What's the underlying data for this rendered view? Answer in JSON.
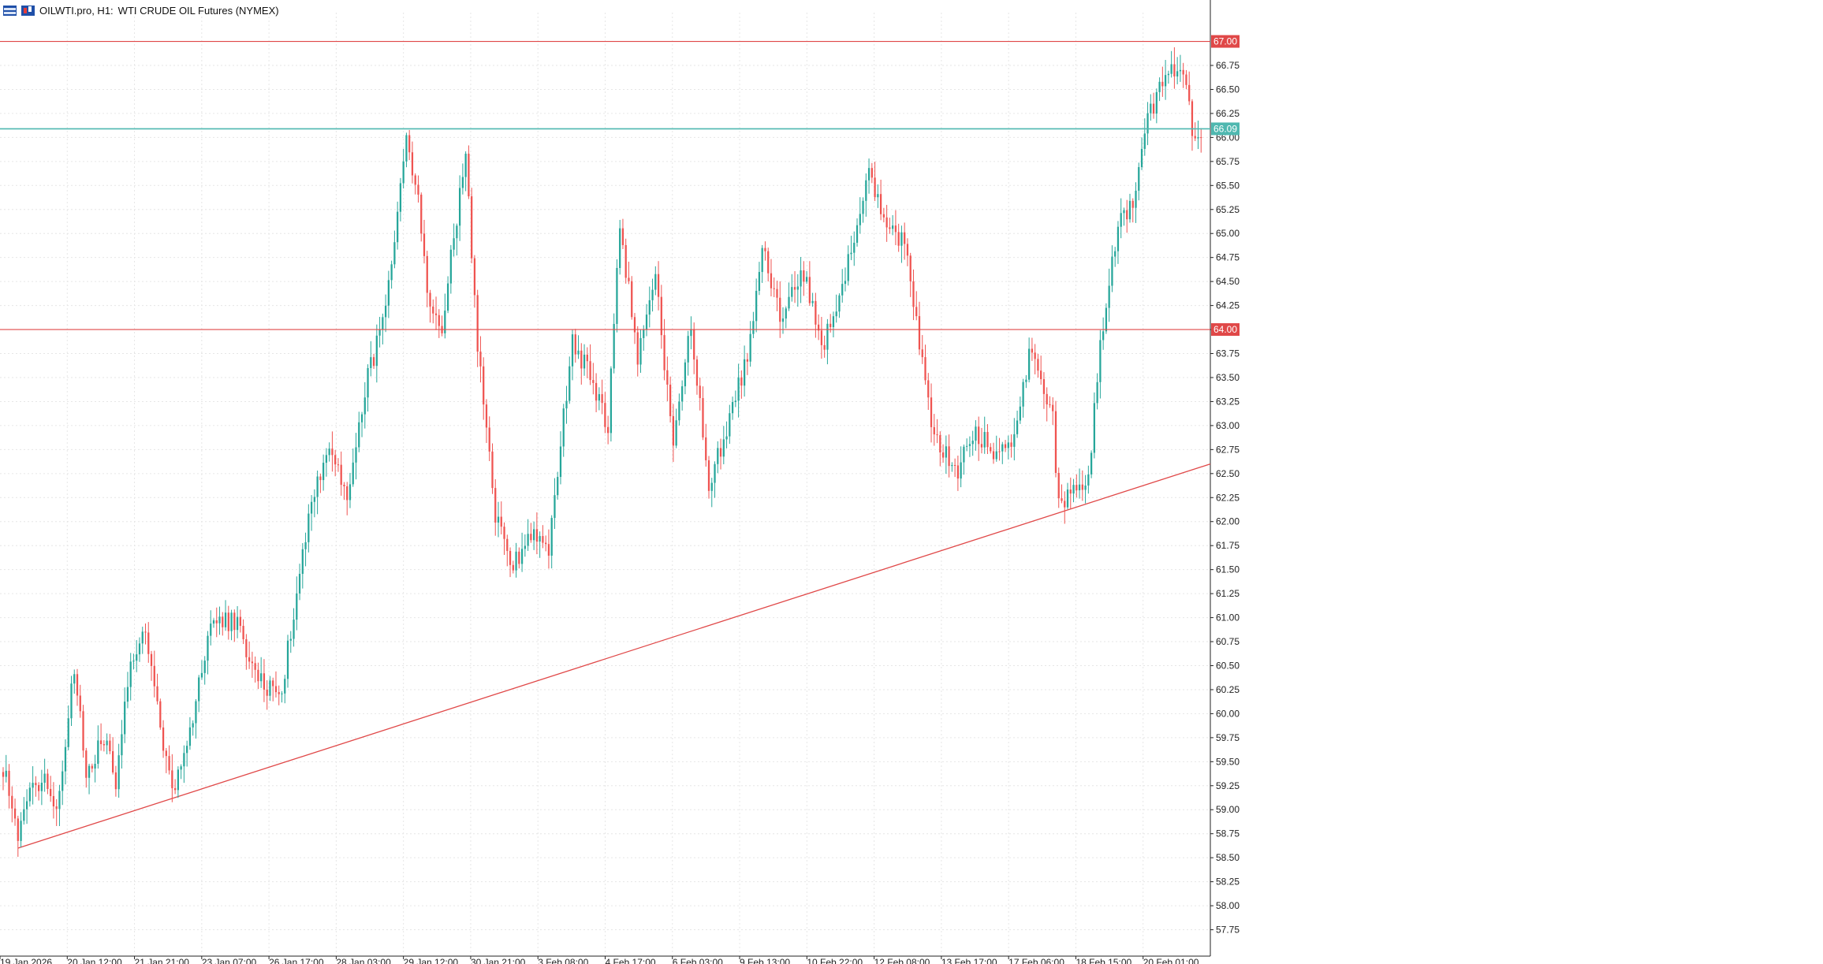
{
  "header": {
    "symbol": "OILWTI.pro, H1:",
    "description": "WTI CRUDE OIL Futures (NYMEX)",
    "icons": [
      "symbols-list-icon",
      "chart-window-icon"
    ]
  },
  "colors": {
    "bull": "#26a69a",
    "bear": "#ef5350",
    "level_line": "#e04848",
    "current_line": "#4fb8b0",
    "trendline": "#e04848",
    "grid": "#e6e6e6",
    "axis": "#222222"
  },
  "chart_data": {
    "type": "candlestick",
    "title": "OILWTI.pro, H1:  WTI CRUDE OIL Futures (NYMEX)",
    "xlabel": "",
    "ylabel": "",
    "ylim": [
      57.5,
      67.3
    ],
    "y_ticks": [
      57.75,
      58.0,
      58.25,
      58.5,
      58.75,
      59.0,
      59.25,
      59.5,
      59.75,
      60.0,
      60.25,
      60.5,
      60.75,
      61.0,
      61.25,
      61.5,
      61.75,
      62.0,
      62.25,
      62.5,
      62.75,
      63.0,
      63.25,
      63.5,
      63.75,
      64.0,
      64.25,
      64.5,
      64.75,
      65.0,
      65.25,
      65.5,
      65.75,
      66.0,
      66.25,
      66.5,
      66.75
    ],
    "x_labels": [
      "19 Jan 2026",
      "20 Jan 12:00",
      "21 Jan 21:00",
      "23 Jan 07:00",
      "26 Jan 17:00",
      "28 Jan 03:00",
      "29 Jan 12:00",
      "30 Jan 21:00",
      "3 Feb 08:00",
      "4 Feb 17:00",
      "6 Feb 03:00",
      "9 Feb 13:00",
      "10 Feb 22:00",
      "12 Feb 08:00",
      "13 Feb 17:00",
      "17 Feb 06:00",
      "18 Feb 15:00",
      "20 Feb 01:00"
    ],
    "grid": true,
    "horizontal_levels": [
      {
        "price": 67.0,
        "label": "67.00",
        "kind": "resistance"
      },
      {
        "price": 64.0,
        "label": "64.00",
        "kind": "support"
      },
      {
        "price": 66.09,
        "label": "66.09",
        "kind": "current_price"
      }
    ],
    "trendline": {
      "from_bar": 5,
      "from_price": 58.6,
      "to_price": 62.6
    },
    "anchors": [
      [
        0,
        59.45
      ],
      [
        4,
        58.95
      ],
      [
        5,
        58.62
      ],
      [
        8,
        59.15
      ],
      [
        14,
        59.38
      ],
      [
        18,
        58.98
      ],
      [
        24,
        60.45
      ],
      [
        28,
        59.4
      ],
      [
        34,
        59.75
      ],
      [
        38,
        59.32
      ],
      [
        43,
        60.6
      ],
      [
        48,
        60.82
      ],
      [
        54,
        59.65
      ],
      [
        58,
        59.18
      ],
      [
        64,
        59.98
      ],
      [
        70,
        60.95
      ],
      [
        79,
        60.95
      ],
      [
        84,
        60.45
      ],
      [
        88,
        60.3
      ],
      [
        94,
        60.25
      ],
      [
        103,
        62.1
      ],
      [
        110,
        62.8
      ],
      [
        116,
        62.2
      ],
      [
        122,
        63.4
      ],
      [
        128,
        64.05
      ],
      [
        132,
        64.8
      ],
      [
        136,
        66.1
      ],
      [
        140,
        65.3
      ],
      [
        144,
        64.2
      ],
      [
        148,
        64.05
      ],
      [
        156,
        65.85
      ],
      [
        160,
        63.8
      ],
      [
        166,
        62.05
      ],
      [
        172,
        61.55
      ],
      [
        178,
        61.9
      ],
      [
        184,
        61.7
      ],
      [
        188,
        62.8
      ],
      [
        192,
        63.9
      ],
      [
        198,
        63.5
      ],
      [
        204,
        63.0
      ],
      [
        208,
        65.1
      ],
      [
        214,
        63.7
      ],
      [
        220,
        64.55
      ],
      [
        226,
        62.75
      ],
      [
        232,
        64.05
      ],
      [
        238,
        62.4
      ],
      [
        244,
        62.95
      ],
      [
        252,
        63.85
      ],
      [
        256,
        64.85
      ],
      [
        262,
        64.1
      ],
      [
        270,
        64.6
      ],
      [
        276,
        63.8
      ],
      [
        284,
        64.55
      ],
      [
        292,
        65.6
      ],
      [
        298,
        65.05
      ],
      [
        304,
        64.9
      ],
      [
        310,
        63.7
      ],
      [
        314,
        62.85
      ],
      [
        322,
        62.55
      ],
      [
        328,
        62.95
      ],
      [
        334,
        62.7
      ],
      [
        340,
        62.85
      ],
      [
        346,
        63.7
      ],
      [
        350,
        63.5
      ],
      [
        354,
        63.05
      ],
      [
        356,
        62.15
      ],
      [
        362,
        62.3
      ],
      [
        366,
        62.5
      ],
      [
        370,
        63.8
      ],
      [
        376,
        65.1
      ],
      [
        382,
        65.4
      ],
      [
        386,
        66.2
      ],
      [
        392,
        66.65
      ],
      [
        398,
        66.75
      ],
      [
        401,
        66.1
      ],
      [
        404,
        66.0
      ]
    ]
  }
}
